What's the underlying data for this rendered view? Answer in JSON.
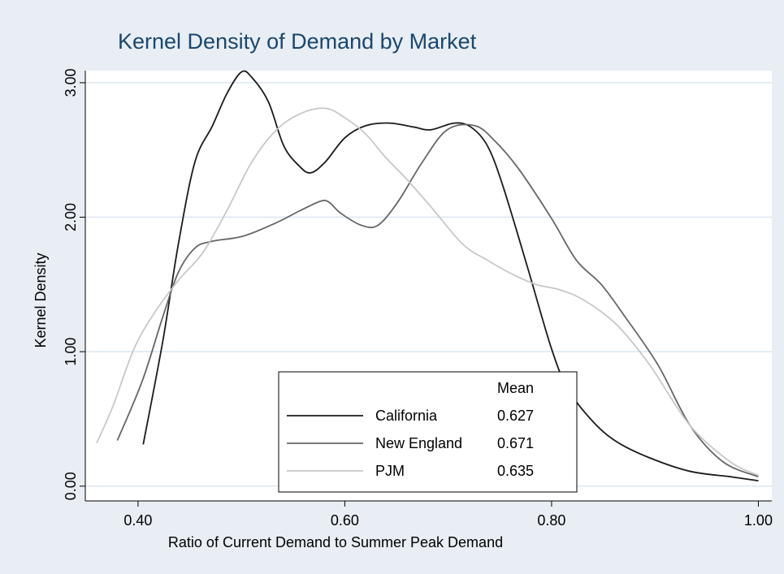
{
  "chart_data": {
    "type": "line",
    "title": "Kernel Density of Demand by Market",
    "xlabel": "Ratio of Current Demand to Summer Peak Demand",
    "ylabel": "Kernel Density",
    "xlim": [
      0.349,
      1.013
    ],
    "ylim": [
      -0.11,
      3.09
    ],
    "xticks": [
      {
        "value": 0.4,
        "label": "0.40"
      },
      {
        "value": 0.6,
        "label": "0.60"
      },
      {
        "value": 0.8,
        "label": "0.80"
      },
      {
        "value": 1.0,
        "label": "1.00"
      }
    ],
    "yticks": [
      {
        "value": 0,
        "label": "0.00"
      },
      {
        "value": 1,
        "label": "1.00"
      },
      {
        "value": 2,
        "label": "2.00"
      },
      {
        "value": 3,
        "label": "3.00"
      }
    ],
    "grid": true,
    "legend_title": "Mean",
    "series": [
      {
        "name": "California",
        "color": "#1a1a1a",
        "mean": 0.627,
        "x": [
          0.405,
          0.424,
          0.439,
          0.455,
          0.472,
          0.486,
          0.5,
          0.51,
          0.526,
          0.541,
          0.556,
          0.567,
          0.581,
          0.6,
          0.62,
          0.643,
          0.667,
          0.683,
          0.706,
          0.722,
          0.738,
          0.753,
          0.777,
          0.8,
          0.816,
          0.84,
          0.863,
          0.895,
          0.934,
          0.973,
          1.0
        ],
        "values": [
          0.31,
          1.08,
          1.8,
          2.41,
          2.68,
          2.92,
          3.08,
          3.04,
          2.86,
          2.53,
          2.38,
          2.33,
          2.41,
          2.59,
          2.68,
          2.7,
          2.67,
          2.65,
          2.7,
          2.67,
          2.53,
          2.23,
          1.62,
          1.02,
          0.72,
          0.48,
          0.33,
          0.21,
          0.11,
          0.07,
          0.04
        ]
      },
      {
        "name": "New England",
        "color": "#666666",
        "mean": 0.671,
        "x": [
          0.38,
          0.404,
          0.424,
          0.439,
          0.455,
          0.471,
          0.502,
          0.534,
          0.557,
          0.577,
          0.585,
          0.596,
          0.616,
          0.632,
          0.651,
          0.675,
          0.699,
          0.726,
          0.746,
          0.769,
          0.8,
          0.824,
          0.848,
          0.871,
          0.903,
          0.934,
          0.966,
          1.0
        ],
        "values": [
          0.34,
          0.78,
          1.26,
          1.59,
          1.77,
          1.82,
          1.86,
          1.96,
          2.05,
          2.12,
          2.11,
          2.03,
          1.94,
          1.94,
          2.11,
          2.41,
          2.65,
          2.68,
          2.56,
          2.35,
          1.99,
          1.68,
          1.5,
          1.26,
          0.9,
          0.45,
          0.18,
          0.07
        ]
      },
      {
        "name": "PJM",
        "color": "#c8c8c8",
        "mean": 0.635,
        "x": [
          0.36,
          0.376,
          0.396,
          0.416,
          0.439,
          0.463,
          0.486,
          0.51,
          0.534,
          0.557,
          0.581,
          0.6,
          0.62,
          0.64,
          0.659,
          0.683,
          0.714,
          0.738,
          0.761,
          0.785,
          0.808,
          0.832,
          0.863,
          0.895,
          0.934,
          0.973,
          1.0
        ],
        "values": [
          0.32,
          0.6,
          1.02,
          1.29,
          1.53,
          1.74,
          2.05,
          2.41,
          2.65,
          2.77,
          2.81,
          2.74,
          2.62,
          2.44,
          2.29,
          2.08,
          1.8,
          1.68,
          1.58,
          1.5,
          1.46,
          1.38,
          1.2,
          0.9,
          0.45,
          0.18,
          0.08
        ]
      }
    ]
  }
}
